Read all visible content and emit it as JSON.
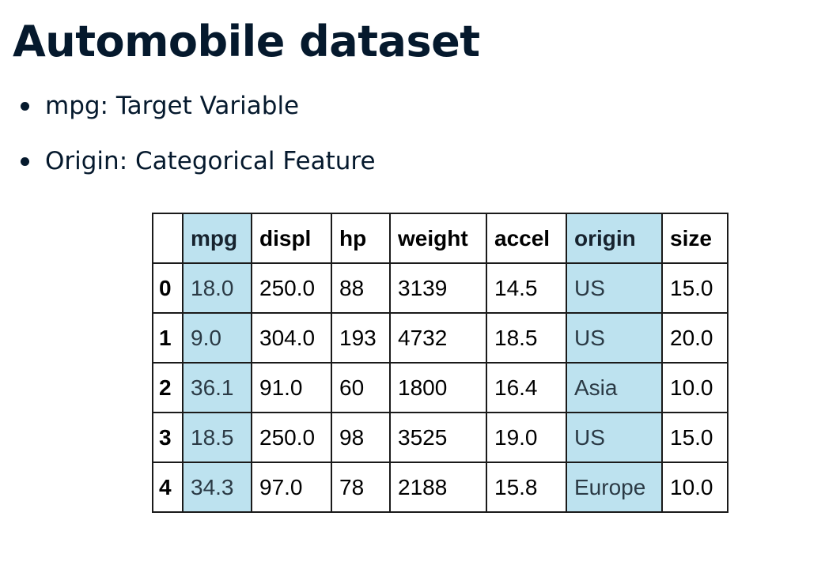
{
  "title": "Automobile dataset",
  "bullets": [
    "mpg: Target Variable",
    "Origin: Categorical Feature"
  ],
  "table": {
    "columns": [
      "",
      "mpg",
      "displ",
      "hp",
      "weight",
      "accel",
      "origin",
      "size"
    ],
    "highlighted_columns": [
      "mpg",
      "origin"
    ],
    "highlight_color": "#bde2ef",
    "rows": [
      [
        "0",
        "18.0",
        "250.0",
        "88",
        "3139",
        "14.5",
        "US",
        "15.0"
      ],
      [
        "1",
        "9.0",
        "304.0",
        "193",
        "4732",
        "18.5",
        "US",
        "20.0"
      ],
      [
        "2",
        "36.1",
        "91.0",
        "60",
        "1800",
        "16.4",
        "Asia",
        "10.0"
      ],
      [
        "3",
        "18.5",
        "250.0",
        "98",
        "3525",
        "19.0",
        "US",
        "15.0"
      ],
      [
        "4",
        "34.3",
        "97.0",
        "78",
        "2188",
        "15.8",
        "Europe",
        "10.0"
      ]
    ]
  },
  "colors": {
    "text": "#05192d",
    "highlight": "#bde2ef"
  }
}
